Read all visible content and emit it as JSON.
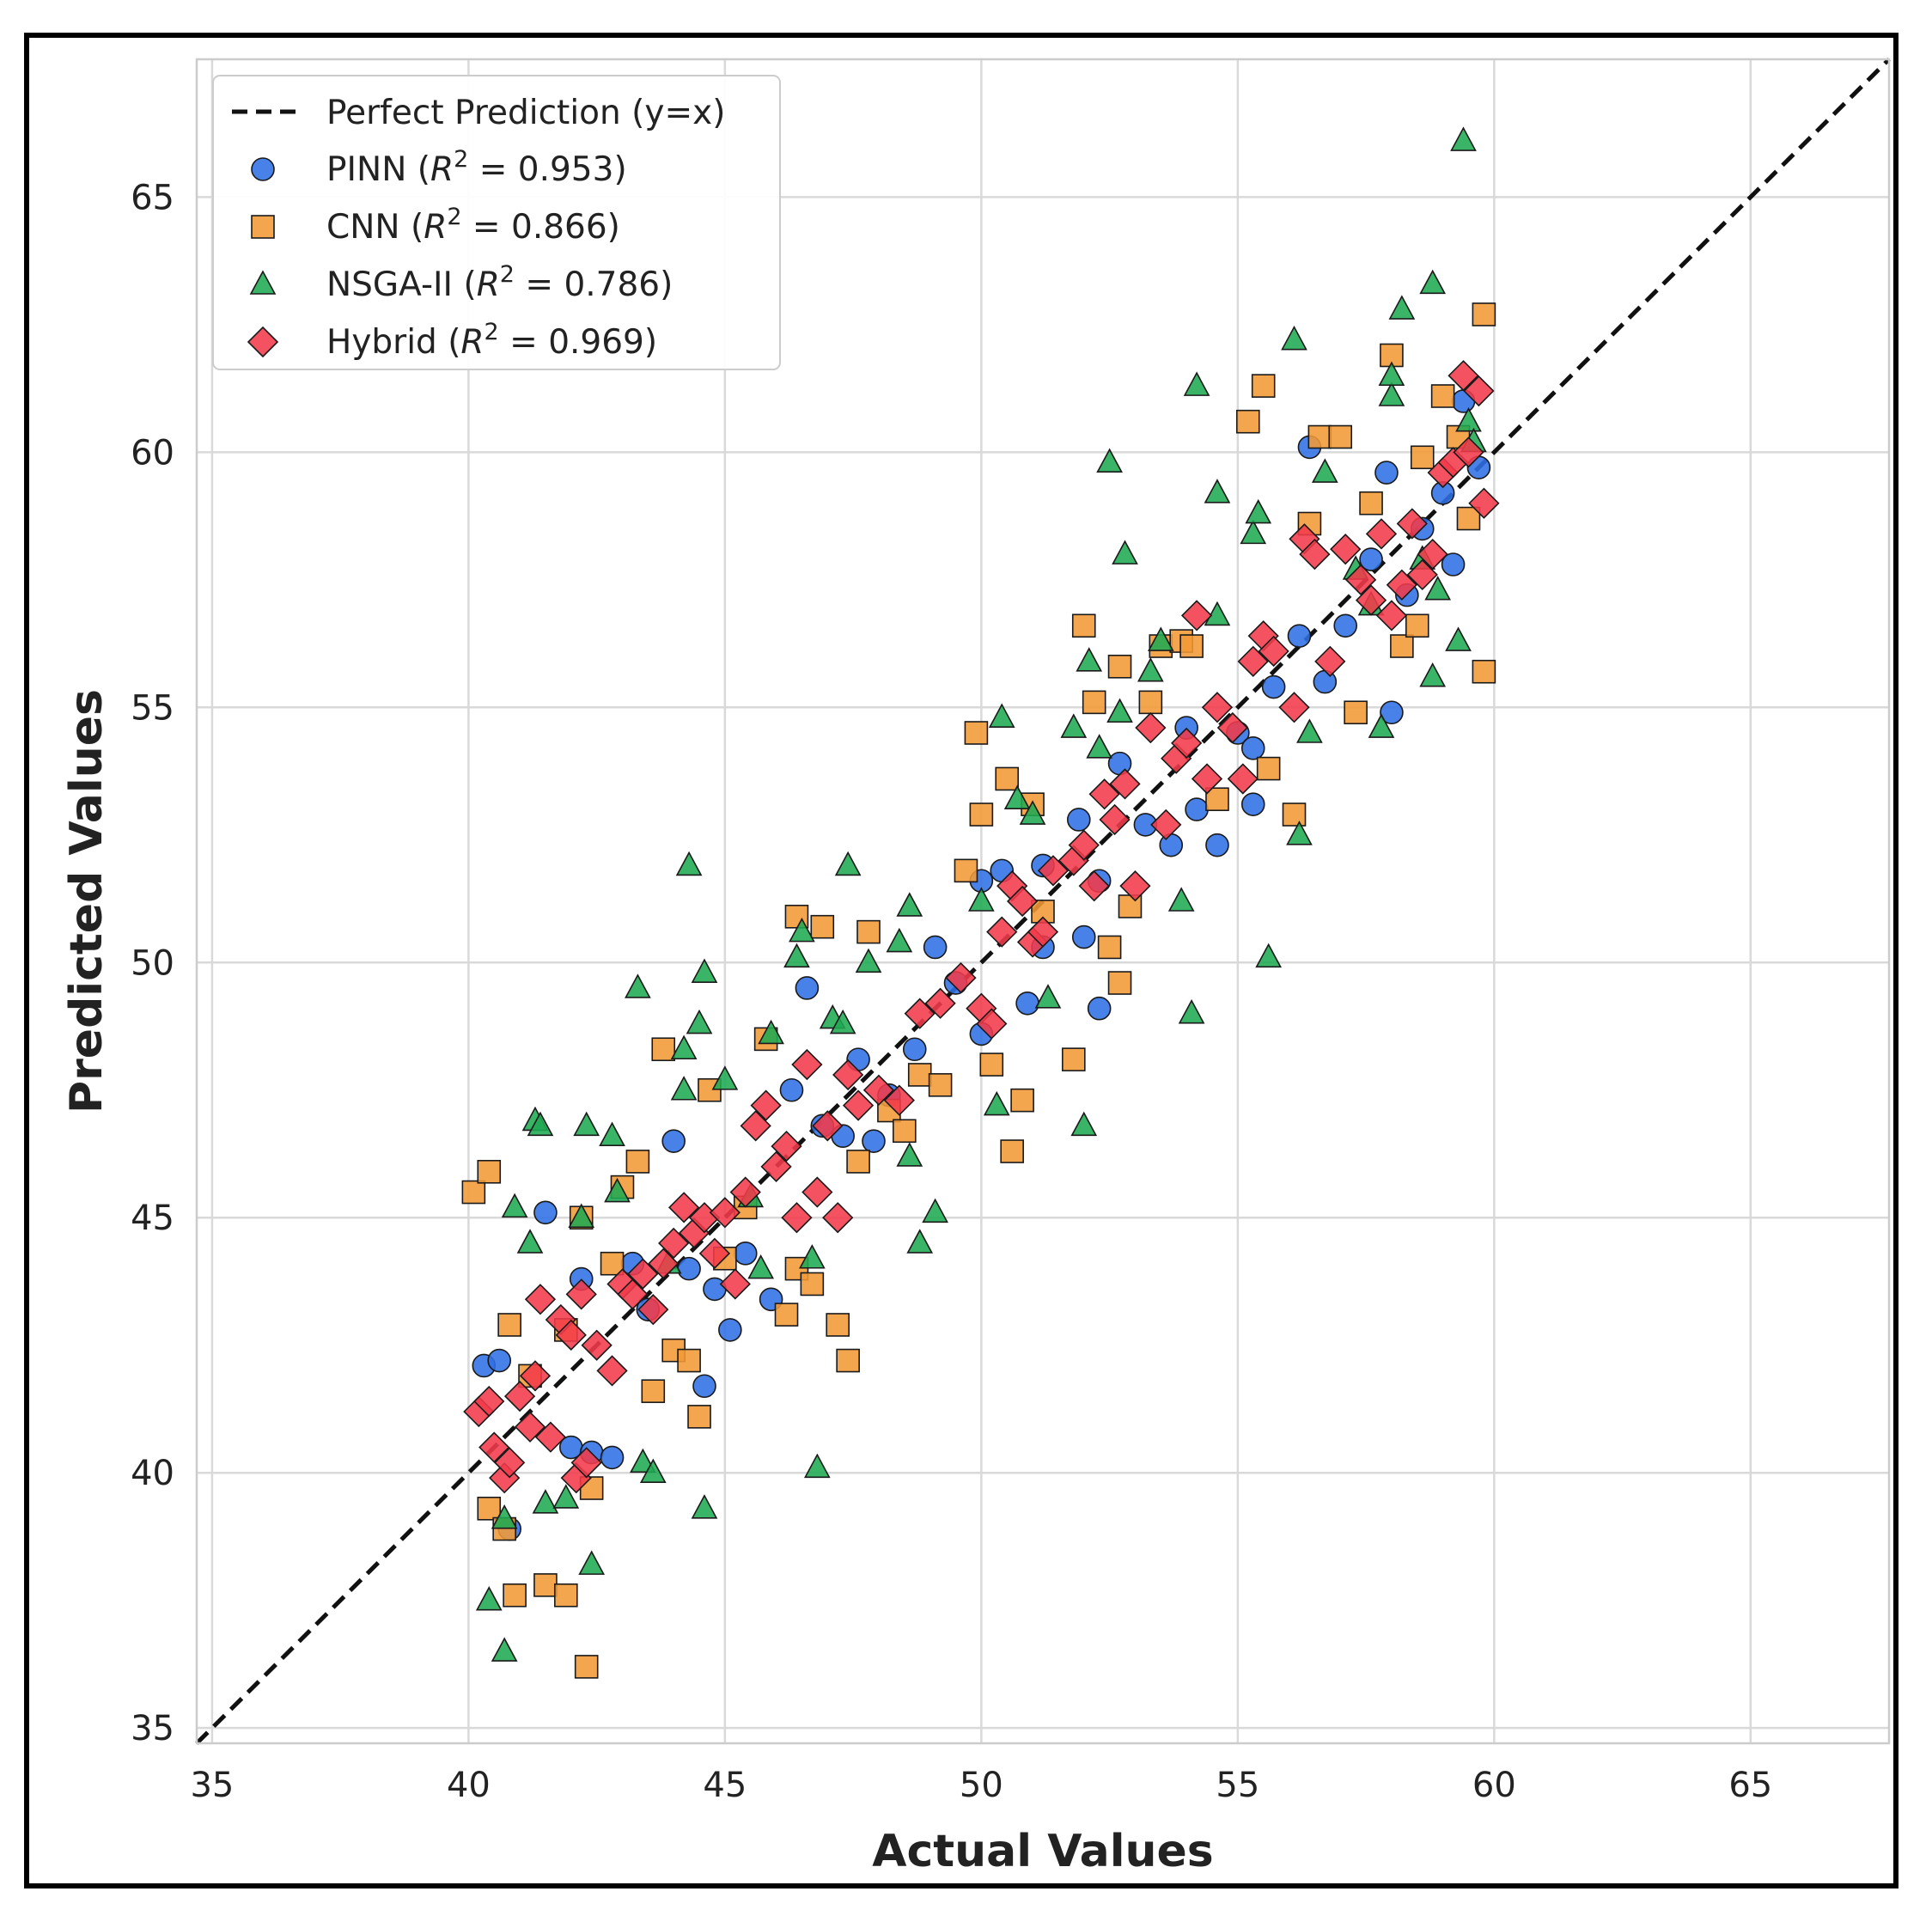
{
  "chart_data": {
    "type": "scatter",
    "title": "",
    "xlabel": "Actual Values",
    "ylabel": "Predicted Values",
    "xlim": [
      34.7,
      67.7
    ],
    "ylim": [
      34.7,
      67.7
    ],
    "xticks": [
      35,
      40,
      45,
      50,
      55,
      60,
      65
    ],
    "yticks": [
      35,
      40,
      45,
      50,
      55,
      60,
      65
    ],
    "grid": true,
    "legend_position": "top-left",
    "reference_line": {
      "label": "Perfect Prediction (y=x)",
      "style": "dashed",
      "color": "#111111"
    },
    "series": [
      {
        "name": "PINN",
        "r2_text": "0.953",
        "marker": "circle",
        "color": "#2f6fe4",
        "points": [
          [
            40.3,
            42.1
          ],
          [
            40.6,
            42.2
          ],
          [
            40.8,
            38.9
          ],
          [
            41.5,
            45.1
          ],
          [
            42.0,
            40.5
          ],
          [
            42.2,
            43.8
          ],
          [
            42.4,
            40.4
          ],
          [
            42.8,
            40.3
          ],
          [
            43.2,
            44.1
          ],
          [
            43.5,
            43.2
          ],
          [
            44.0,
            46.5
          ],
          [
            44.3,
            44.0
          ],
          [
            44.6,
            41.7
          ],
          [
            44.8,
            43.6
          ],
          [
            45.1,
            42.8
          ],
          [
            45.4,
            44.3
          ],
          [
            45.9,
            43.4
          ],
          [
            46.3,
            47.5
          ],
          [
            46.6,
            49.5
          ],
          [
            46.9,
            46.8
          ],
          [
            47.3,
            46.6
          ],
          [
            47.6,
            48.1
          ],
          [
            47.9,
            46.5
          ],
          [
            48.2,
            47.4
          ],
          [
            48.7,
            48.3
          ],
          [
            49.1,
            50.3
          ],
          [
            49.5,
            49.6
          ],
          [
            50.0,
            48.6
          ],
          [
            50.0,
            51.6
          ],
          [
            50.4,
            51.8
          ],
          [
            50.9,
            49.2
          ],
          [
            51.2,
            50.3
          ],
          [
            51.2,
            51.9
          ],
          [
            51.9,
            52.8
          ],
          [
            52.0,
            50.5
          ],
          [
            52.3,
            51.6
          ],
          [
            52.3,
            49.1
          ],
          [
            52.7,
            53.9
          ],
          [
            53.2,
            52.7
          ],
          [
            53.7,
            52.3
          ],
          [
            54.0,
            54.6
          ],
          [
            54.2,
            53.0
          ],
          [
            54.6,
            52.3
          ],
          [
            55.0,
            54.5
          ],
          [
            55.3,
            53.1
          ],
          [
            55.3,
            54.2
          ],
          [
            55.7,
            55.4
          ],
          [
            56.2,
            56.4
          ],
          [
            56.4,
            60.1
          ],
          [
            56.7,
            55.5
          ],
          [
            57.1,
            56.6
          ],
          [
            57.6,
            57.9
          ],
          [
            57.9,
            59.6
          ],
          [
            58.0,
            54.9
          ],
          [
            58.3,
            57.2
          ],
          [
            58.6,
            58.5
          ],
          [
            59.0,
            59.2
          ],
          [
            59.2,
            57.8
          ],
          [
            59.4,
            61.0
          ],
          [
            59.7,
            59.7
          ]
        ]
      },
      {
        "name": "CNN",
        "r2_text": "0.866",
        "marker": "square",
        "color": "#f39a35",
        "points": [
          [
            40.1,
            45.5
          ],
          [
            40.4,
            45.9
          ],
          [
            40.4,
            39.3
          ],
          [
            40.7,
            38.9
          ],
          [
            40.8,
            42.9
          ],
          [
            40.9,
            37.6
          ],
          [
            41.2,
            41.9
          ],
          [
            41.5,
            37.8
          ],
          [
            41.9,
            42.8
          ],
          [
            41.9,
            37.6
          ],
          [
            42.2,
            45.0
          ],
          [
            42.3,
            36.2
          ],
          [
            42.4,
            39.7
          ],
          [
            42.8,
            44.1
          ],
          [
            43.0,
            45.6
          ],
          [
            43.3,
            46.1
          ],
          [
            43.6,
            41.6
          ],
          [
            43.8,
            48.3
          ],
          [
            44.0,
            42.4
          ],
          [
            44.3,
            42.2
          ],
          [
            44.5,
            41.1
          ],
          [
            44.7,
            47.5
          ],
          [
            45.0,
            44.2
          ],
          [
            45.4,
            45.2
          ],
          [
            45.8,
            48.5
          ],
          [
            46.2,
            43.1
          ],
          [
            46.4,
            50.9
          ],
          [
            46.4,
            44.0
          ],
          [
            46.7,
            43.7
          ],
          [
            46.9,
            50.7
          ],
          [
            47.2,
            42.9
          ],
          [
            47.4,
            42.2
          ],
          [
            47.6,
            46.1
          ],
          [
            47.8,
            50.6
          ],
          [
            48.2,
            47.1
          ],
          [
            48.5,
            46.7
          ],
          [
            48.8,
            47.8
          ],
          [
            49.2,
            47.6
          ],
          [
            49.7,
            51.8
          ],
          [
            49.9,
            54.5
          ],
          [
            50.0,
            52.9
          ],
          [
            50.2,
            48.0
          ],
          [
            50.5,
            53.6
          ],
          [
            50.6,
            46.3
          ],
          [
            50.8,
            47.3
          ],
          [
            51.0,
            53.1
          ],
          [
            51.2,
            51.0
          ],
          [
            51.8,
            48.1
          ],
          [
            52.0,
            56.6
          ],
          [
            52.2,
            55.1
          ],
          [
            52.5,
            50.3
          ],
          [
            52.7,
            55.8
          ],
          [
            52.7,
            49.6
          ],
          [
            52.9,
            51.1
          ],
          [
            53.3,
            55.1
          ],
          [
            53.5,
            56.2
          ],
          [
            53.9,
            56.3
          ],
          [
            54.1,
            56.2
          ],
          [
            54.6,
            53.2
          ],
          [
            55.2,
            60.6
          ],
          [
            55.5,
            61.3
          ],
          [
            55.6,
            53.8
          ],
          [
            56.1,
            52.9
          ],
          [
            56.4,
            58.6
          ],
          [
            56.6,
            60.3
          ],
          [
            57.0,
            60.3
          ],
          [
            57.3,
            54.9
          ],
          [
            57.6,
            59.0
          ],
          [
            58.0,
            61.9
          ],
          [
            58.2,
            56.2
          ],
          [
            58.5,
            56.6
          ],
          [
            58.6,
            59.9
          ],
          [
            59.0,
            61.1
          ],
          [
            59.3,
            60.3
          ],
          [
            59.5,
            58.7
          ],
          [
            59.8,
            55.7
          ],
          [
            59.8,
            62.7
          ]
        ]
      },
      {
        "name": "NSGA-II",
        "r2_text": "0.786",
        "marker": "triangle",
        "color": "#1faa52",
        "points": [
          [
            40.4,
            37.5
          ],
          [
            40.7,
            36.5
          ],
          [
            40.7,
            39.1
          ],
          [
            40.9,
            45.2
          ],
          [
            41.2,
            44.5
          ],
          [
            41.3,
            46.9
          ],
          [
            41.4,
            46.8
          ],
          [
            41.5,
            39.4
          ],
          [
            41.9,
            39.5
          ],
          [
            42.2,
            45.0
          ],
          [
            42.3,
            46.8
          ],
          [
            42.4,
            38.2
          ],
          [
            42.8,
            46.6
          ],
          [
            42.9,
            45.5
          ],
          [
            43.3,
            49.5
          ],
          [
            43.4,
            40.2
          ],
          [
            43.6,
            40.0
          ],
          [
            43.9,
            44.1
          ],
          [
            44.2,
            47.5
          ],
          [
            44.2,
            48.3
          ],
          [
            44.3,
            51.9
          ],
          [
            44.5,
            48.8
          ],
          [
            44.6,
            49.8
          ],
          [
            44.6,
            39.3
          ],
          [
            45.0,
            47.7
          ],
          [
            45.5,
            45.4
          ],
          [
            45.7,
            44.0
          ],
          [
            45.9,
            48.6
          ],
          [
            46.4,
            50.1
          ],
          [
            46.5,
            50.6
          ],
          [
            46.7,
            44.2
          ],
          [
            46.8,
            40.1
          ],
          [
            47.1,
            48.9
          ],
          [
            47.3,
            48.8
          ],
          [
            47.4,
            51.9
          ],
          [
            47.8,
            50.0
          ],
          [
            48.4,
            50.4
          ],
          [
            48.6,
            46.2
          ],
          [
            48.6,
            51.1
          ],
          [
            48.8,
            44.5
          ],
          [
            49.1,
            45.1
          ],
          [
            50.0,
            51.2
          ],
          [
            50.3,
            47.2
          ],
          [
            50.4,
            54.8
          ],
          [
            50.7,
            53.2
          ],
          [
            51.0,
            52.9
          ],
          [
            51.3,
            49.3
          ],
          [
            51.8,
            54.6
          ],
          [
            52.0,
            46.8
          ],
          [
            52.1,
            55.9
          ],
          [
            52.3,
            54.2
          ],
          [
            52.5,
            59.8
          ],
          [
            52.7,
            54.9
          ],
          [
            52.8,
            58.0
          ],
          [
            53.3,
            55.7
          ],
          [
            53.5,
            56.3
          ],
          [
            53.9,
            51.2
          ],
          [
            54.1,
            49.0
          ],
          [
            54.2,
            61.3
          ],
          [
            54.6,
            56.8
          ],
          [
            54.6,
            59.2
          ],
          [
            55.3,
            58.4
          ],
          [
            55.4,
            58.8
          ],
          [
            55.6,
            50.1
          ],
          [
            56.1,
            62.2
          ],
          [
            56.2,
            52.5
          ],
          [
            56.4,
            54.5
          ],
          [
            56.7,
            59.6
          ],
          [
            57.3,
            57.7
          ],
          [
            57.6,
            57.0
          ],
          [
            57.8,
            54.6
          ],
          [
            58.0,
            61.1
          ],
          [
            58.0,
            61.5
          ],
          [
            58.2,
            62.8
          ],
          [
            58.6,
            57.9
          ],
          [
            58.8,
            63.3
          ],
          [
            58.8,
            55.6
          ],
          [
            58.9,
            57.3
          ],
          [
            59.3,
            56.3
          ],
          [
            59.4,
            66.1
          ],
          [
            59.5,
            60.6
          ],
          [
            59.6,
            60.2
          ]
        ]
      },
      {
        "name": "Hybrid",
        "r2_text": "0.969",
        "marker": "diamond",
        "color": "#f23a4a",
        "points": [
          [
            40.2,
            41.2
          ],
          [
            40.4,
            41.4
          ],
          [
            40.5,
            40.5
          ],
          [
            40.7,
            39.9
          ],
          [
            40.8,
            40.2
          ],
          [
            41.0,
            41.5
          ],
          [
            41.2,
            40.9
          ],
          [
            41.3,
            41.9
          ],
          [
            41.4,
            43.4
          ],
          [
            41.6,
            40.7
          ],
          [
            41.8,
            43.0
          ],
          [
            42.0,
            42.7
          ],
          [
            42.1,
            39.9
          ],
          [
            42.2,
            43.5
          ],
          [
            42.3,
            40.2
          ],
          [
            42.5,
            42.5
          ],
          [
            42.8,
            42.0
          ],
          [
            43.0,
            43.7
          ],
          [
            43.2,
            43.5
          ],
          [
            43.4,
            43.9
          ],
          [
            43.6,
            43.2
          ],
          [
            43.8,
            44.1
          ],
          [
            44.0,
            44.5
          ],
          [
            44.2,
            45.2
          ],
          [
            44.4,
            44.7
          ],
          [
            44.6,
            45.0
          ],
          [
            44.8,
            44.3
          ],
          [
            45.0,
            45.1
          ],
          [
            45.2,
            43.7
          ],
          [
            45.4,
            45.5
          ],
          [
            45.6,
            46.8
          ],
          [
            45.8,
            47.2
          ],
          [
            46.0,
            46.0
          ],
          [
            46.2,
            46.4
          ],
          [
            46.4,
            45.0
          ],
          [
            46.6,
            48.0
          ],
          [
            46.8,
            45.5
          ],
          [
            47.0,
            46.8
          ],
          [
            47.2,
            45.0
          ],
          [
            47.4,
            47.8
          ],
          [
            47.6,
            47.2
          ],
          [
            48.0,
            47.5
          ],
          [
            48.4,
            47.3
          ],
          [
            48.8,
            49.0
          ],
          [
            49.2,
            49.2
          ],
          [
            49.6,
            49.7
          ],
          [
            50.0,
            49.1
          ],
          [
            50.2,
            48.8
          ],
          [
            50.4,
            50.6
          ],
          [
            50.6,
            51.5
          ],
          [
            50.8,
            51.2
          ],
          [
            51.0,
            50.4
          ],
          [
            51.2,
            50.6
          ],
          [
            51.4,
            51.8
          ],
          [
            51.8,
            52.0
          ],
          [
            52.0,
            52.3
          ],
          [
            52.2,
            51.5
          ],
          [
            52.4,
            53.3
          ],
          [
            52.6,
            52.8
          ],
          [
            52.8,
            53.5
          ],
          [
            53.0,
            51.5
          ],
          [
            53.3,
            54.6
          ],
          [
            53.6,
            52.7
          ],
          [
            53.8,
            54.0
          ],
          [
            54.0,
            54.3
          ],
          [
            54.2,
            56.8
          ],
          [
            54.4,
            53.6
          ],
          [
            54.6,
            55.0
          ],
          [
            54.9,
            54.6
          ],
          [
            55.1,
            53.6
          ],
          [
            55.3,
            55.9
          ],
          [
            55.5,
            56.4
          ],
          [
            55.7,
            56.1
          ],
          [
            56.1,
            55.0
          ],
          [
            56.3,
            58.3
          ],
          [
            56.5,
            58.0
          ],
          [
            56.8,
            55.9
          ],
          [
            57.1,
            58.1
          ],
          [
            57.4,
            57.5
          ],
          [
            57.6,
            57.1
          ],
          [
            57.8,
            58.4
          ],
          [
            58.0,
            56.8
          ],
          [
            58.2,
            57.4
          ],
          [
            58.4,
            58.6
          ],
          [
            58.6,
            57.6
          ],
          [
            58.8,
            58.0
          ],
          [
            59.0,
            59.6
          ],
          [
            59.2,
            59.8
          ],
          [
            59.4,
            61.5
          ],
          [
            59.5,
            60.0
          ],
          [
            59.7,
            61.2
          ],
          [
            59.8,
            59.0
          ]
        ]
      }
    ]
  }
}
